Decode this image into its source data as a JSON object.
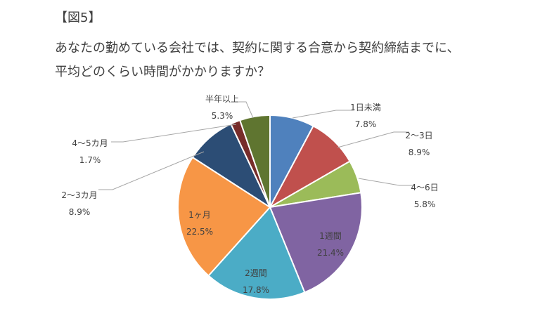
{
  "figure_label": "【図5】",
  "title_lines": [
    "あなたの勤めている会社では、契約に関する合意から契約締結までに、",
    "平均どのくらい時間がかかりますか？"
  ],
  "chart_data": {
    "type": "pie",
    "title": "あなたの勤めている会社では、契約に関する合意から契約締結までに、平均どのくらい時間がかかりますか？",
    "slices": [
      {
        "label": "1日未満",
        "value": 7.8,
        "value_label": "7.8%",
        "color": "#4f81bd"
      },
      {
        "label": "2～3日",
        "value": 8.9,
        "value_label": "8.9%",
        "color": "#c0504d"
      },
      {
        "label": "4～6日",
        "value": 5.8,
        "value_label": "5.8%",
        "color": "#9bbb59"
      },
      {
        "label": "1週間",
        "value": 21.4,
        "value_label": "21.4%",
        "color": "#8064a2"
      },
      {
        "label": "2週間",
        "value": 17.8,
        "value_label": "17.8%",
        "color": "#4bacc6"
      },
      {
        "label": "1ヶ月",
        "value": 22.5,
        "value_label": "22.5%",
        "color": "#f79646"
      },
      {
        "label": "2～3カ月",
        "value": 8.9,
        "value_label": "8.9%",
        "color": "#2c4d75"
      },
      {
        "label": "4～5カ月",
        "value": 1.7,
        "value_label": "1.7%",
        "color": "#772c2a"
      },
      {
        "label": "半年以上",
        "value": 5.3,
        "value_label": "5.3%",
        "color": "#5f7530"
      }
    ],
    "legend": "none",
    "start_angle": "12 o'clock",
    "direction": "clockwise"
  }
}
